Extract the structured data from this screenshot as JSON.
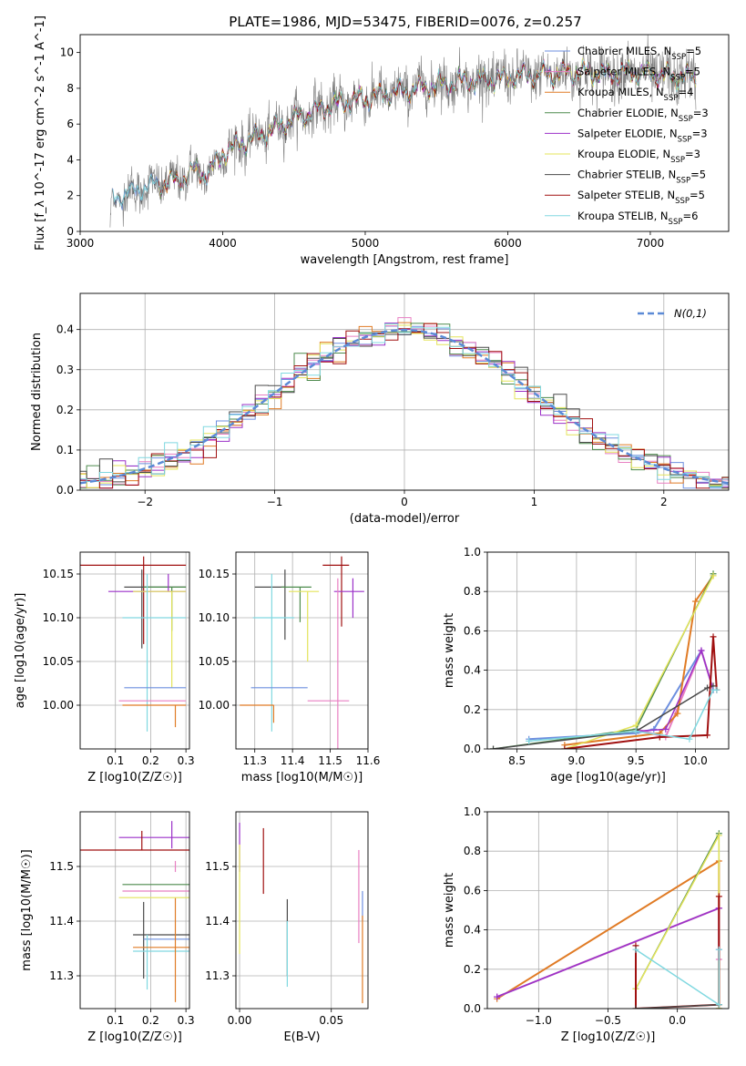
{
  "figure_title": "PLATE=1986, MJD=53475, FIBERID=0076, z=0.257",
  "colors": {
    "Chabrier MILES": "#6d8fdf",
    "Salpeter MILES": "#e87fc2",
    "Kroupa MILES": "#e07b25",
    "Chabrier ELODIE": "#4c8a4c",
    "Salpeter ELODIE": "#9b30c8",
    "Kroupa ELODIE": "#e4e45a",
    "Chabrier STELIB": "#4a4a4a",
    "Salpeter STELIB": "#a01010",
    "Kroupa STELIB": "#80d8e0",
    "data": "#808080",
    "normal": "#5b8ad6"
  },
  "chart_data": [
    {
      "id": "spectrum",
      "type": "line",
      "xlabel": "wavelength [Angstrom, rest frame]",
      "ylabel": "Flux [f_λ 10^-17 erg cm^-2 s^-1 A^-1]",
      "xlim": [
        3000,
        7550
      ],
      "ylim": [
        0,
        11
      ],
      "xticks": [
        3000,
        4000,
        5000,
        6000,
        7000
      ],
      "yticks": [
        0,
        2,
        4,
        6,
        8,
        10
      ],
      "legend_position": "top-right",
      "legend": [
        {
          "name": "Chabrier MILES",
          "nssp": "5"
        },
        {
          "name": "Salpeter MILES",
          "nssp": "5"
        },
        {
          "name": "Kroupa MILES",
          "nssp": "4"
        },
        {
          "name": "Chabrier ELODIE",
          "nssp": "3"
        },
        {
          "name": "Salpeter ELODIE",
          "nssp": "3"
        },
        {
          "name": "Kroupa ELODIE",
          "nssp": "3"
        },
        {
          "name": "Chabrier STELIB",
          "nssp": "5"
        },
        {
          "name": "Salpeter STELIB",
          "nssp": "5"
        },
        {
          "name": "Kroupa STELIB",
          "nssp": "6"
        }
      ],
      "data_x_range": [
        3210,
        7320
      ],
      "continuum": [
        [
          3210,
          0.0
        ],
        [
          3225,
          1.8
        ],
        [
          3400,
          2.3
        ],
        [
          3500,
          2.6
        ],
        [
          3600,
          2.7
        ],
        [
          3700,
          2.9
        ],
        [
          3800,
          3.4
        ],
        [
          3900,
          3.2
        ],
        [
          3950,
          3.8
        ],
        [
          4000,
          4.4
        ],
        [
          4100,
          4.8
        ],
        [
          4300,
          5.5
        ],
        [
          4500,
          6.3
        ],
        [
          4700,
          6.9
        ],
        [
          4900,
          7.3
        ],
        [
          5100,
          7.6
        ],
        [
          5300,
          7.9
        ],
        [
          5500,
          8.2
        ],
        [
          5700,
          8.4
        ],
        [
          5900,
          8.5
        ],
        [
          6100,
          8.7
        ],
        [
          6300,
          8.8
        ],
        [
          6500,
          8.9
        ],
        [
          6700,
          8.8
        ],
        [
          6900,
          8.9
        ],
        [
          7100,
          8.7
        ],
        [
          7320,
          8.6
        ]
      ]
    },
    {
      "id": "residuals",
      "type": "step",
      "xlabel": "(data-model)/error",
      "ylabel": "Normed distribution",
      "xlim": [
        -2.5,
        2.5
      ],
      "ylim": [
        0,
        0.49
      ],
      "xticks": [
        -2,
        -1,
        0,
        1,
        2
      ],
      "yticks": [
        0.0,
        0.1,
        0.2,
        0.3,
        0.4
      ],
      "grid": true,
      "legend_position": "top-right",
      "normal_label": "N(0,1)",
      "bin_width": 0.1
    },
    {
      "id": "age_vs_Z",
      "type": "errorbar",
      "xlabel": "Z [log10(Z/Z☉)]",
      "ylabel": "age [log10(age/yr)]",
      "xlim": [
        0.0,
        0.31
      ],
      "ylim": [
        9.95,
        10.175
      ],
      "xticks": [
        0.1,
        0.2,
        0.3
      ],
      "yticks": [
        10.0,
        10.05,
        10.1,
        10.15
      ],
      "grid": true,
      "points": [
        {
          "series": "Salpeter STELIB",
          "x": 0.18,
          "y": 10.16,
          "xerr": [
            0.18,
            0.12
          ],
          "yerr": [
            0.09,
            0.01
          ]
        },
        {
          "series": "Chabrier STELIB",
          "x": 0.175,
          "y": 10.135,
          "xerr": [
            0.05,
            0.125
          ],
          "yerr": [
            0.07,
            0.02
          ]
        },
        {
          "series": "Chabrier ELODIE",
          "x": 0.26,
          "y": 10.135,
          "xerr": [
            0.08,
            0.04
          ],
          "yerr": [
            0.05,
            0.0
          ]
        },
        {
          "series": "Salpeter ELODIE",
          "x": 0.25,
          "y": 10.13,
          "xerr": [
            0.17,
            0.05
          ],
          "yerr": [
            0.0,
            0.02
          ]
        },
        {
          "series": "Kroupa ELODIE",
          "x": 0.26,
          "y": 10.13,
          "xerr": [
            0.11,
            0.04
          ],
          "yerr": [
            0.11,
            0.0
          ]
        },
        {
          "series": "Kroupa STELIB",
          "x": 0.19,
          "y": 10.1,
          "xerr": [
            0.07,
            0.11
          ],
          "yerr": [
            0.13,
            0.05
          ]
        },
        {
          "series": "Chabrier MILES",
          "x": 0.175,
          "y": 10.02,
          "xerr": [
            0.05,
            0.125
          ],
          "yerr": [
            0.0,
            0.0
          ]
        },
        {
          "series": "Salpeter MILES",
          "x": 0.28,
          "y": 10.005,
          "xerr": [
            0.17,
            0.02
          ],
          "yerr": [
            0.0,
            0.0
          ]
        },
        {
          "series": "Kroupa MILES",
          "x": 0.27,
          "y": 10.0,
          "xerr": [
            0.15,
            0.03
          ],
          "yerr": [
            0.025,
            0.0
          ]
        }
      ]
    },
    {
      "id": "age_vs_mass",
      "type": "errorbar",
      "xlabel": "mass [log10(M/M☉)]",
      "ylabel": "",
      "xlim": [
        11.25,
        11.6
      ],
      "ylim": [
        9.95,
        10.175
      ],
      "xticks": [
        11.3,
        11.4,
        11.5,
        11.6
      ],
      "yticks": [
        10.0,
        10.05,
        10.1,
        10.15
      ],
      "grid": true,
      "points": [
        {
          "series": "Salpeter STELIB",
          "x": 11.53,
          "y": 10.16,
          "xerr": [
            0.05,
            0.02
          ],
          "yerr": [
            0.07,
            0.01
          ]
        },
        {
          "series": "Chabrier STELIB",
          "x": 11.38,
          "y": 10.135,
          "xerr": [
            0.08,
            0.0
          ],
          "yerr": [
            0.06,
            0.02
          ]
        },
        {
          "series": "Chabrier ELODIE",
          "x": 11.42,
          "y": 10.135,
          "xerr": [
            0.05,
            0.03
          ],
          "yerr": [
            0.04,
            0.0
          ]
        },
        {
          "series": "Salpeter ELODIE",
          "x": 11.56,
          "y": 10.13,
          "xerr": [
            0.05,
            0.03
          ],
          "yerr": [
            0.03,
            0.015
          ]
        },
        {
          "series": "Kroupa ELODIE",
          "x": 11.44,
          "y": 10.13,
          "xerr": [
            0.05,
            0.03
          ],
          "yerr": [
            0.08,
            0.0
          ]
        },
        {
          "series": "Kroupa STELIB",
          "x": 11.345,
          "y": 10.1,
          "xerr": [
            0.05,
            0.06
          ],
          "yerr": [
            0.13,
            0.05
          ]
        },
        {
          "series": "Chabrier MILES",
          "x": 11.38,
          "y": 10.02,
          "xerr": [
            0.09,
            0.06
          ],
          "yerr": [
            0.0,
            0.0
          ]
        },
        {
          "series": "Salpeter MILES",
          "x": 11.52,
          "y": 10.005,
          "xerr": [
            0.08,
            0.03
          ],
          "yerr": [
            0.07,
            0.14
          ]
        },
        {
          "series": "Kroupa MILES",
          "x": 11.35,
          "y": 10.0,
          "xerr": [
            0.09,
            0.0
          ],
          "yerr": [
            0.02,
            0.0
          ]
        }
      ]
    },
    {
      "id": "mass_weight_vs_age",
      "type": "line",
      "xlabel": "age [log10(age/yr)]",
      "ylabel": "mass weight",
      "xlim": [
        8.25,
        10.28
      ],
      "ylim": [
        0.0,
        1.0
      ],
      "xticks": [
        8.5,
        9.0,
        9.5,
        10.0
      ],
      "yticks": [
        0.0,
        0.2,
        0.4,
        0.6,
        0.8,
        1.0
      ],
      "grid": true,
      "series": [
        {
          "name": "Chabrier MILES",
          "x": [
            8.6,
            9.5,
            9.65,
            10.05,
            10.15
          ],
          "y": [
            0.05,
            0.08,
            0.1,
            0.5,
            0.3
          ]
        },
        {
          "name": "Salpeter MILES",
          "x": [
            9.5,
            9.75,
            10.05,
            10.15
          ],
          "y": [
            0.1,
            0.06,
            0.5,
            0.3
          ]
        },
        {
          "name": "Kroupa MILES",
          "x": [
            8.9,
            9.7,
            9.85,
            10.0,
            10.15
          ],
          "y": [
            0.02,
            0.08,
            0.18,
            0.75,
            0.88
          ]
        },
        {
          "name": "Chabrier ELODIE",
          "x": [
            8.3,
            9.5,
            10.15
          ],
          "y": [
            0.0,
            0.1,
            0.89
          ]
        },
        {
          "name": "Salpeter ELODIE",
          "x": [
            9.5,
            9.75,
            10.05,
            10.15
          ],
          "y": [
            0.09,
            0.1,
            0.5,
            0.3
          ]
        },
        {
          "name": "Kroupa ELODIE",
          "x": [
            8.9,
            9.5,
            10.15
          ],
          "y": [
            0.0,
            0.12,
            0.88
          ]
        },
        {
          "name": "Chabrier STELIB",
          "x": [
            8.3,
            9.5,
            10.1,
            10.15
          ],
          "y": [
            0.0,
            0.09,
            0.31,
            0.32
          ]
        },
        {
          "name": "Salpeter STELIB",
          "x": [
            8.9,
            9.7,
            10.1,
            10.15,
            10.18
          ],
          "y": [
            0.0,
            0.06,
            0.07,
            0.57,
            0.3
          ]
        },
        {
          "name": "Kroupa STELIB",
          "x": [
            8.6,
            9.5,
            9.95,
            10.15,
            10.18
          ],
          "y": [
            0.04,
            0.09,
            0.05,
            0.3,
            0.3
          ]
        }
      ]
    },
    {
      "id": "mass_vs_Z",
      "type": "errorbar",
      "xlabel": "Z [log10(Z/Z☉)]",
      "ylabel": "mass [log10(M/M☉)]",
      "xlim": [
        0.0,
        0.31
      ],
      "ylim": [
        11.24,
        11.6
      ],
      "xticks": [
        0.1,
        0.2,
        0.3
      ],
      "yticks": [
        11.3,
        11.4,
        11.5
      ],
      "grid": true,
      "points": [
        {
          "series": "Salpeter ELODIE",
          "x": 0.26,
          "y": 11.553,
          "xerr": [
            0.15,
            0.05
          ],
          "yerr": [
            0.02,
            0.03
          ]
        },
        {
          "series": "Salpeter STELIB",
          "x": 0.175,
          "y": 11.53,
          "xerr": [
            0.175,
            0.135
          ],
          "yerr": [
            0.0,
            0.035
          ]
        },
        {
          "series": "Salpeter MILES",
          "x": 0.27,
          "y": 11.51,
          "xerr": [
            0.0,
            0.0
          ],
          "yerr": [
            0.02,
            0.0
          ]
        },
        {
          "series": "Chabrier ELODIE",
          "x": 0.26,
          "y": 11.467,
          "xerr": [
            0.14,
            0.05
          ],
          "yerr": [
            0.0,
            0.0
          ]
        },
        {
          "series": "Salpeter MILES",
          "x": 0.27,
          "y": 11.455,
          "xerr": [
            0.15,
            0.04
          ],
          "yerr": [
            0.0,
            0.0
          ]
        },
        {
          "series": "Kroupa ELODIE",
          "x": 0.26,
          "y": 11.443,
          "xerr": [
            0.15,
            0.05
          ],
          "yerr": [
            0.0,
            0.0
          ]
        },
        {
          "series": "Chabrier STELIB",
          "x": 0.18,
          "y": 11.375,
          "xerr": [
            0.03,
            0.13
          ],
          "yerr": [
            0.08,
            0.06
          ]
        },
        {
          "series": "Chabrier MILES",
          "x": 0.2,
          "y": 11.367,
          "xerr": [
            0.02,
            0.11
          ],
          "yerr": [
            0.0,
            0.0
          ]
        },
        {
          "series": "Kroupa STELIB",
          "x": 0.19,
          "y": 11.345,
          "xerr": [
            0.04,
            0.12
          ],
          "yerr": [
            0.07,
            0.03
          ]
        },
        {
          "series": "Kroupa MILES",
          "x": 0.27,
          "y": 11.352,
          "xerr": [
            0.12,
            0.04
          ],
          "yerr": [
            0.1,
            0.09
          ]
        }
      ]
    },
    {
      "id": "mass_vs_EBV",
      "type": "errorbar",
      "xlabel": "E(B-V)",
      "ylabel": "",
      "xlim": [
        -0.002,
        0.07
      ],
      "ylim": [
        11.24,
        11.6
      ],
      "xticks": [
        0.0,
        0.05
      ],
      "yticks": [
        11.3,
        11.4,
        11.5
      ],
      "grid": true,
      "points": [
        {
          "series": "Salpeter ELODIE",
          "x": 0.0,
          "y": 11.55,
          "xerr": [
            0,
            0
          ],
          "yerr": [
            0.06,
            0.03
          ]
        },
        {
          "series": "Kroupa ELODIE",
          "x": 0.0,
          "y": 11.44,
          "xerr": [
            0,
            0
          ],
          "yerr": [
            0.1,
            0.1
          ]
        },
        {
          "series": "Salpeter STELIB",
          "x": 0.013,
          "y": 11.52,
          "xerr": [
            0,
            0
          ],
          "yerr": [
            0.07,
            0.05
          ]
        },
        {
          "series": "Chabrier STELIB",
          "x": 0.026,
          "y": 11.38,
          "xerr": [
            0,
            0
          ],
          "yerr": [
            0.08,
            0.06
          ]
        },
        {
          "series": "Kroupa STELIB",
          "x": 0.026,
          "y": 11.35,
          "xerr": [
            0,
            0
          ],
          "yerr": [
            0.07,
            0.05
          ]
        },
        {
          "series": "Salpeter MILES",
          "x": 0.065,
          "y": 11.47,
          "xerr": [
            0,
            0
          ],
          "yerr": [
            0.11,
            0.06
          ]
        },
        {
          "series": "Chabrier MILES",
          "x": 0.067,
          "y": 11.4,
          "xerr": [
            0,
            0
          ],
          "yerr": [
            0.0,
            0.055
          ]
        },
        {
          "series": "Kroupa MILES",
          "x": 0.067,
          "y": 11.35,
          "xerr": [
            0,
            0
          ],
          "yerr": [
            0.1,
            0.06
          ]
        }
      ]
    },
    {
      "id": "mass_weight_vs_Z",
      "type": "line",
      "xlabel": "Z [log10(Z/Z☉)]",
      "ylabel": "mass weight",
      "xlim": [
        -1.37,
        0.37
      ],
      "ylim": [
        0.0,
        1.0
      ],
      "xticks": [
        -1.0,
        -0.5,
        0.0
      ],
      "yticks": [
        0.0,
        0.2,
        0.4,
        0.6,
        0.8,
        1.0
      ],
      "grid": true,
      "series": [
        {
          "name": "Kroupa MILES",
          "x": [
            -1.3,
            0.3,
            0.3
          ],
          "y": [
            0.05,
            0.75,
            0.0
          ]
        },
        {
          "name": "Chabrier MILES",
          "x": [
            -1.3,
            0.3,
            0.3
          ],
          "y": [
            0.06,
            0.51,
            0.3
          ]
        },
        {
          "name": "Salpeter MILES",
          "x": [
            -1.3,
            0.3,
            0.3
          ],
          "y": [
            0.06,
            0.51,
            0.25
          ]
        },
        {
          "name": "Salpeter ELODIE",
          "x": [
            -1.3,
            0.3
          ],
          "y": [
            0.06,
            0.51
          ]
        },
        {
          "name": "Chabrier ELODIE",
          "x": [
            -0.3,
            0.3,
            0.3
          ],
          "y": [
            0.1,
            0.89,
            0.0
          ]
        },
        {
          "name": "Kroupa ELODIE",
          "x": [
            -0.3,
            0.3,
            0.3
          ],
          "y": [
            0.1,
            0.88,
            0.0
          ]
        },
        {
          "name": "Salpeter STELIB",
          "x": [
            -0.3,
            -0.3,
            0.3,
            0.3
          ],
          "y": [
            0.32,
            0.0,
            0.02,
            0.57
          ]
        },
        {
          "name": "Chabrier STELIB",
          "x": [
            -0.3,
            0.3
          ],
          "y": [
            0.0,
            0.02
          ]
        },
        {
          "name": "Kroupa STELIB",
          "x": [
            -0.3,
            0.3,
            0.3
          ],
          "y": [
            0.3,
            0.02,
            0.3
          ]
        }
      ]
    }
  ]
}
